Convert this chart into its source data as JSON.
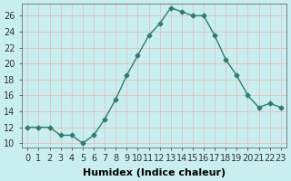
{
  "x": [
    0,
    1,
    2,
    3,
    4,
    5,
    6,
    7,
    8,
    9,
    10,
    11,
    12,
    13,
    14,
    15,
    16,
    17,
    18,
    19,
    20,
    21,
    22,
    23
  ],
  "y": [
    12,
    12,
    12,
    11,
    11,
    10,
    11,
    13,
    15.5,
    18.5,
    21,
    23.5,
    25,
    27,
    26.5,
    26,
    26,
    23.5,
    20.5,
    18.5,
    16,
    14.5,
    15,
    14.5
  ],
  "line_color": "#2e7d6e",
  "marker": "D",
  "marker_size": 2.5,
  "bg_color": "#c8eef0",
  "grid_color": "#e8b8b8",
  "xlabel": "Humidex (Indice chaleur)",
  "xlim": [
    -0.5,
    23.5
  ],
  "ylim": [
    9.5,
    27.5
  ],
  "yticks": [
    10,
    12,
    14,
    16,
    18,
    20,
    22,
    24,
    26
  ],
  "xtick_labels": [
    "0",
    "1",
    "2",
    "3",
    "4",
    "5",
    "6",
    "7",
    "8",
    "9",
    "10",
    "11",
    "12",
    "13",
    "14",
    "15",
    "16",
    "17",
    "18",
    "19",
    "20",
    "21",
    "22",
    "23"
  ],
  "font_size": 7,
  "xlabel_font_size": 8
}
